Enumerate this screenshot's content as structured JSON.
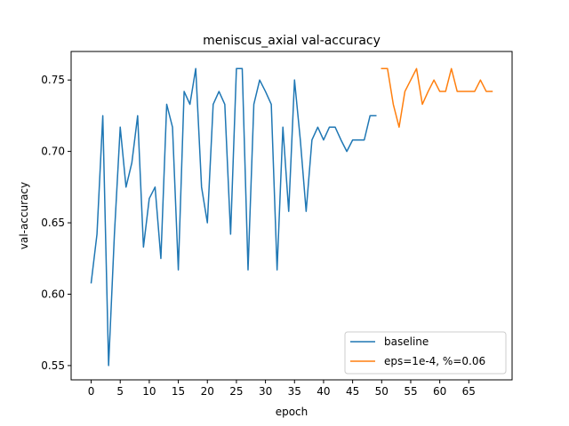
{
  "chart_data": {
    "type": "line",
    "title": "meniscus_axial val-accuracy",
    "xlabel": "epoch",
    "ylabel": "val-accuracy",
    "xlim": [
      -3.45,
      72.45
    ],
    "ylim": [
      0.54,
      0.77
    ],
    "xticks": [
      0,
      5,
      10,
      15,
      20,
      25,
      30,
      35,
      40,
      45,
      50,
      55,
      60,
      65
    ],
    "yticks": [
      0.55,
      0.6,
      0.65,
      0.7,
      0.75
    ],
    "ytick_labels": [
      "0.55",
      "0.60",
      "0.65",
      "0.70",
      "0.75"
    ],
    "grid": false,
    "legend_position": "lower-right",
    "series": [
      {
        "name": "baseline",
        "color": "#1f77b4",
        "x": [
          0,
          1,
          2,
          3,
          4,
          5,
          6,
          7,
          8,
          9,
          10,
          11,
          12,
          13,
          14,
          15,
          16,
          17,
          18,
          19,
          20,
          21,
          22,
          23,
          24,
          25,
          26,
          27,
          28,
          29,
          30,
          31,
          32,
          33,
          34,
          35,
          36,
          37,
          38,
          39,
          40,
          41,
          42,
          43,
          44,
          45,
          46,
          47,
          48,
          49
        ],
        "y": [
          0.608,
          0.642,
          0.725,
          0.55,
          0.642,
          0.717,
          0.675,
          0.692,
          0.725,
          0.633,
          0.667,
          0.675,
          0.625,
          0.733,
          0.717,
          0.617,
          0.742,
          0.733,
          0.758,
          0.675,
          0.65,
          0.733,
          0.742,
          0.733,
          0.642,
          0.758,
          0.758,
          0.617,
          0.733,
          0.75,
          0.742,
          0.733,
          0.617,
          0.717,
          0.658,
          0.75,
          0.708,
          0.658,
          0.708,
          0.717,
          0.708,
          0.717,
          0.717,
          0.708,
          0.7,
          0.708,
          0.708,
          0.708,
          0.725,
          0.725
        ]
      },
      {
        "name": "eps=1e-4, %=0.06",
        "color": "#ff7f0e",
        "x": [
          50,
          51,
          52,
          53,
          54,
          55,
          56,
          57,
          58,
          59,
          60,
          61,
          62,
          63,
          64,
          65,
          66,
          67,
          68,
          69
        ],
        "y": [
          0.758,
          0.758,
          0.733,
          0.717,
          0.742,
          0.75,
          0.758,
          0.733,
          0.742,
          0.75,
          0.742,
          0.742,
          0.758,
          0.742,
          0.742,
          0.742,
          0.742,
          0.75,
          0.742,
          0.742
        ]
      }
    ]
  }
}
